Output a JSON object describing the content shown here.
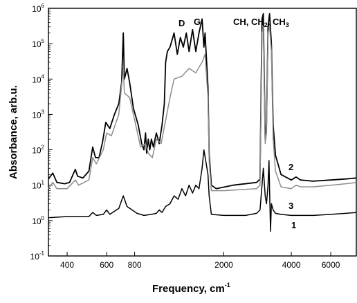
{
  "chart_data": {
    "type": "line",
    "title": "",
    "xlabel": "Frequency, cm",
    "xlabel_superscript": "-1",
    "ylabel": "Absorbance, arb.u.",
    "x_scale": "log",
    "y_scale": "log",
    "xlim": [
      330,
      7800
    ],
    "ylim": [
      0.1,
      1000000
    ],
    "x_ticks": [
      {
        "value": 400,
        "label": "400"
      },
      {
        "value": 600,
        "label": "600"
      },
      {
        "value": 800,
        "label": "800"
      },
      {
        "value": 2000,
        "label": "2000"
      },
      {
        "value": 4000,
        "label": "4000"
      },
      {
        "value": 6000,
        "label": "6000"
      }
    ],
    "y_ticks": [
      {
        "value": 0.1,
        "base": "10",
        "exp": "-1"
      },
      {
        "value": 1,
        "base": "10",
        "exp": "0"
      },
      {
        "value": 10,
        "base": "10",
        "exp": "1"
      },
      {
        "value": 100,
        "base": "10",
        "exp": "2"
      },
      {
        "value": 1000,
        "base": "10",
        "exp": "3"
      },
      {
        "value": 10000,
        "base": "10",
        "exp": "4"
      },
      {
        "value": 100000,
        "base": "10",
        "exp": "5"
      },
      {
        "value": 1000000,
        "base": "10",
        "exp": "6"
      }
    ],
    "annotations": {
      "d_label": "D",
      "g_label": "G",
      "ch_text": "CH, CH",
      "ch2_sub": "2",
      "ch_sep": ", CH",
      "ch3_sub": "3"
    },
    "colors": {
      "curve_2": "#000000",
      "curve_3": "#8c8c8c",
      "curve_1": "#000000"
    },
    "series": [
      {
        "name": "2",
        "color": "#000000",
        "points": [
          [
            330,
            15
          ],
          [
            345,
            22
          ],
          [
            360,
            12
          ],
          [
            390,
            11
          ],
          [
            410,
            12
          ],
          [
            435,
            28
          ],
          [
            445,
            18
          ],
          [
            470,
            16
          ],
          [
            500,
            25
          ],
          [
            520,
            120
          ],
          [
            535,
            60
          ],
          [
            555,
            60
          ],
          [
            575,
            160
          ],
          [
            595,
            600
          ],
          [
            620,
            400
          ],
          [
            650,
            1000
          ],
          [
            680,
            2000
          ],
          [
            700,
            8000
          ],
          [
            712,
            200000
          ],
          [
            720,
            10000
          ],
          [
            740,
            20000
          ],
          [
            760,
            8000
          ],
          [
            790,
            1500
          ],
          [
            830,
            500
          ],
          [
            860,
            150
          ],
          [
            880,
            100
          ],
          [
            895,
            300
          ],
          [
            905,
            80
          ],
          [
            920,
            200
          ],
          [
            935,
            100
          ],
          [
            950,
            200
          ],
          [
            970,
            120
          ],
          [
            1000,
            300
          ],
          [
            1030,
            150
          ],
          [
            1060,
            500
          ],
          [
            1085,
            2000
          ],
          [
            1100,
            30000
          ],
          [
            1120,
            60000
          ],
          [
            1150,
            80000
          ],
          [
            1200,
            200000
          ],
          [
            1240,
            50000
          ],
          [
            1280,
            150000
          ],
          [
            1320,
            80000
          ],
          [
            1360,
            200000
          ],
          [
            1400,
            60000
          ],
          [
            1450,
            250000
          ],
          [
            1500,
            60000
          ],
          [
            1550,
            200000
          ],
          [
            1600,
            500000
          ],
          [
            1630,
            80000
          ],
          [
            1650,
            200000
          ],
          [
            1700,
            6000
          ],
          [
            1720,
            80
          ],
          [
            1760,
            10
          ],
          [
            1850,
            8
          ],
          [
            2200,
            10
          ],
          [
            2800,
            12
          ],
          [
            2900,
            15
          ],
          [
            2960,
            500000
          ],
          [
            3000,
            700000
          ],
          [
            3060,
            200
          ],
          [
            3100,
            500
          ],
          [
            3150,
            300000
          ],
          [
            3200,
            700000
          ],
          [
            3260,
            100000
          ],
          [
            3320,
            500
          ],
          [
            3400,
            70
          ],
          [
            3600,
            20
          ],
          [
            4000,
            14
          ],
          [
            4200,
            17
          ],
          [
            4400,
            14
          ],
          [
            5000,
            13
          ],
          [
            6000,
            14
          ],
          [
            7000,
            15
          ],
          [
            7800,
            16
          ]
        ]
      },
      {
        "name": "3",
        "color": "#8c8c8c",
        "points": [
          [
            330,
            8
          ],
          [
            345,
            12
          ],
          [
            360,
            8
          ],
          [
            400,
            8
          ],
          [
            435,
            14
          ],
          [
            450,
            10
          ],
          [
            500,
            14
          ],
          [
            520,
            60
          ],
          [
            540,
            40
          ],
          [
            580,
            100
          ],
          [
            600,
            300
          ],
          [
            630,
            250
          ],
          [
            680,
            1000
          ],
          [
            712,
            20000
          ],
          [
            720,
            4000
          ],
          [
            760,
            3000
          ],
          [
            800,
            700
          ],
          [
            850,
            120
          ],
          [
            895,
            150
          ],
          [
            920,
            80
          ],
          [
            960,
            60
          ],
          [
            1000,
            200
          ],
          [
            1050,
            150
          ],
          [
            1090,
            500
          ],
          [
            1150,
            3000
          ],
          [
            1200,
            10000
          ],
          [
            1300,
            12000
          ],
          [
            1400,
            20000
          ],
          [
            1500,
            15000
          ],
          [
            1600,
            30000
          ],
          [
            1650,
            50000
          ],
          [
            1700,
            3000
          ],
          [
            1720,
            50
          ],
          [
            1760,
            7
          ],
          [
            2000,
            7
          ],
          [
            2800,
            8
          ],
          [
            2900,
            10
          ],
          [
            2960,
            200000
          ],
          [
            3000,
            300000
          ],
          [
            3060,
            150
          ],
          [
            3100,
            300
          ],
          [
            3150,
            200000
          ],
          [
            3200,
            300000
          ],
          [
            3260,
            60000
          ],
          [
            3320,
            200
          ],
          [
            3400,
            25
          ],
          [
            3600,
            9
          ],
          [
            4000,
            8
          ],
          [
            4200,
            10
          ],
          [
            4400,
            9
          ],
          [
            5000,
            9
          ],
          [
            6000,
            10
          ],
          [
            7000,
            11
          ],
          [
            7800,
            12
          ]
        ]
      },
      {
        "name": "1",
        "color": "#000000",
        "points": [
          [
            330,
            1.2
          ],
          [
            400,
            1.3
          ],
          [
            500,
            1.3
          ],
          [
            520,
            1.7
          ],
          [
            540,
            1.4
          ],
          [
            580,
            1.5
          ],
          [
            600,
            2
          ],
          [
            620,
            1.5
          ],
          [
            680,
            2.2
          ],
          [
            712,
            5
          ],
          [
            740,
            2.5
          ],
          [
            780,
            2
          ],
          [
            820,
            1.6
          ],
          [
            880,
            1.4
          ],
          [
            950,
            1.5
          ],
          [
            1000,
            1.6
          ],
          [
            1030,
            2
          ],
          [
            1060,
            1.7
          ],
          [
            1100,
            2.5
          ],
          [
            1150,
            3
          ],
          [
            1200,
            5
          ],
          [
            1250,
            4
          ],
          [
            1300,
            8
          ],
          [
            1350,
            5
          ],
          [
            1400,
            10
          ],
          [
            1450,
            6
          ],
          [
            1500,
            10
          ],
          [
            1550,
            8
          ],
          [
            1600,
            30
          ],
          [
            1630,
            100
          ],
          [
            1660,
            50
          ],
          [
            1700,
            20
          ],
          [
            1720,
            5
          ],
          [
            1760,
            1.5
          ],
          [
            2000,
            1.4
          ],
          [
            2500,
            1.4
          ],
          [
            2800,
            1.6
          ],
          [
            2900,
            2
          ],
          [
            2960,
            10
          ],
          [
            3000,
            30
          ],
          [
            3060,
            5
          ],
          [
            3100,
            3
          ],
          [
            3150,
            10
          ],
          [
            3180,
            50
          ],
          [
            3200,
            8
          ],
          [
            3230,
            0.5
          ],
          [
            3260,
            3
          ],
          [
            3320,
            2
          ],
          [
            3400,
            1.6
          ],
          [
            3600,
            1.5
          ],
          [
            4000,
            1.4
          ],
          [
            5000,
            1.4
          ],
          [
            6000,
            1.5
          ],
          [
            7000,
            1.6
          ],
          [
            7800,
            1.7
          ]
        ]
      }
    ]
  }
}
